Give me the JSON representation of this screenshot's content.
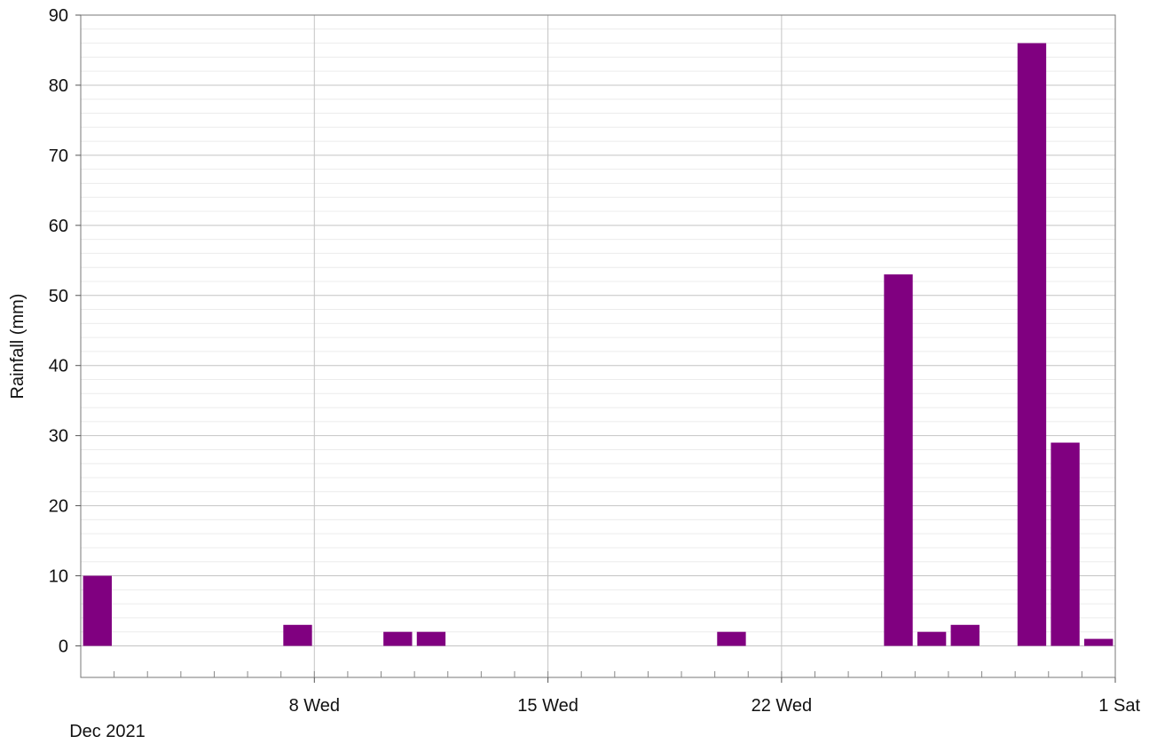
{
  "chart_data": {
    "type": "bar",
    "title": "",
    "xlabel": "Dec 2021",
    "ylabel": "Rainfall (mm)",
    "ylim": [
      -4.5,
      90
    ],
    "xlim": [
      "2021-12-01",
      "2022-01-01"
    ],
    "yticks": [
      0,
      10,
      20,
      30,
      40,
      50,
      60,
      70,
      80,
      90
    ],
    "yminor_step": 2,
    "xticks": [
      {
        "date": "2021-12-08",
        "label": "8 Wed"
      },
      {
        "date": "2021-12-15",
        "label": "15 Wed"
      },
      {
        "date": "2021-12-22",
        "label": "22 Wed"
      },
      {
        "date": "2022-01-01",
        "label": "1 Sat"
      }
    ],
    "grid": true,
    "legend": "none",
    "bar_color": "#800080",
    "series": [
      {
        "x": [
          "2021-12-01",
          "2021-12-02",
          "2021-12-03",
          "2021-12-04",
          "2021-12-05",
          "2021-12-06",
          "2021-12-07",
          "2021-12-08",
          "2021-12-09",
          "2021-12-10",
          "2021-12-11",
          "2021-12-12",
          "2021-12-13",
          "2021-12-14",
          "2021-12-15",
          "2021-12-16",
          "2021-12-17",
          "2021-12-18",
          "2021-12-19",
          "2021-12-20",
          "2021-12-21",
          "2021-12-22",
          "2021-12-23",
          "2021-12-24",
          "2021-12-25",
          "2021-12-26",
          "2021-12-27",
          "2021-12-28",
          "2021-12-29",
          "2021-12-30",
          "2021-12-31"
        ],
        "values": [
          10,
          0,
          0,
          0,
          0,
          0,
          3,
          0,
          0,
          2,
          2,
          0,
          0,
          0,
          0,
          0,
          0,
          0,
          0,
          2,
          0,
          0,
          0,
          0,
          53,
          2,
          3,
          0,
          86,
          29,
          1
        ]
      }
    ]
  }
}
